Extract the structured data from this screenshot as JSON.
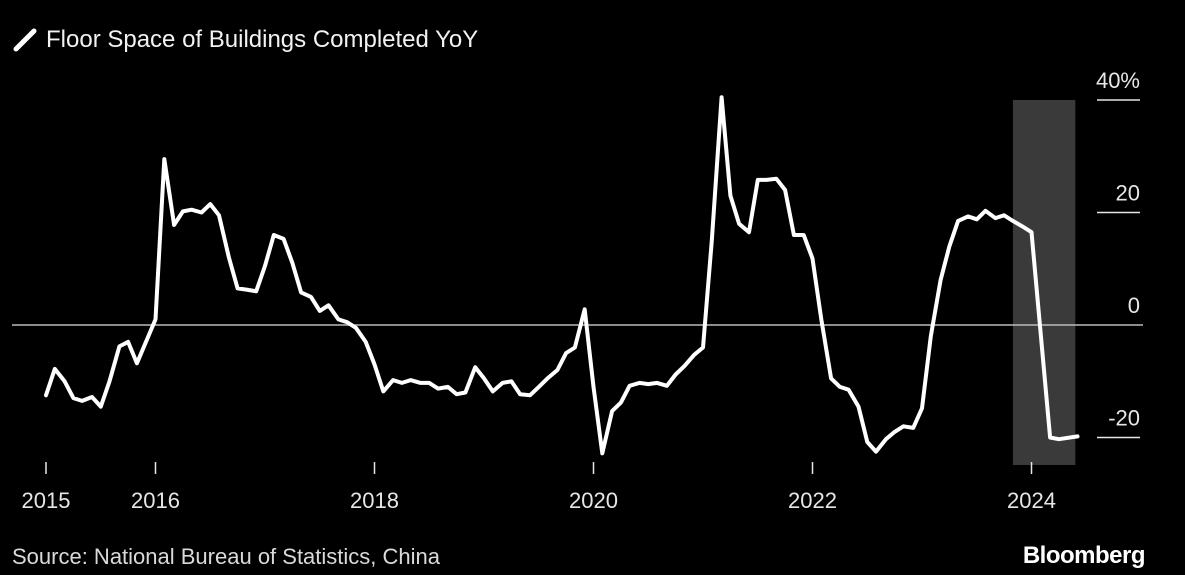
{
  "legend": {
    "series_label": "Floor Space of Buildings Completed YoY",
    "icon": "diagonal-line-icon"
  },
  "source": "Source: National Bureau of Statistics, China",
  "brand": "Bloomberg",
  "colors": {
    "background": "#000000",
    "line": "#ffffff",
    "shade": "#3a3a3a",
    "zero_line": "#bbbbbb"
  },
  "chart_data": {
    "type": "line",
    "title": "",
    "xlabel": "",
    "ylabel": "",
    "ylim": [
      -25,
      40
    ],
    "y_ticks": [
      {
        "value": 40,
        "label": "40%"
      },
      {
        "value": 20,
        "label": "20"
      },
      {
        "value": 0,
        "label": "0"
      },
      {
        "value": -20,
        "label": "-20"
      }
    ],
    "x_ticks": [
      {
        "value": 2015,
        "label": "2015"
      },
      {
        "value": 2016,
        "label": "2016"
      },
      {
        "value": 2018,
        "label": "2018"
      },
      {
        "value": 2020,
        "label": "2020"
      },
      {
        "value": 2022,
        "label": "2022"
      },
      {
        "value": 2024,
        "label": "2024"
      }
    ],
    "xlim": [
      2014.65,
      2025.3
    ],
    "shaded_region": {
      "x_start": 2023.83,
      "x_end": 2024.4
    },
    "grid": false,
    "legend_position": "top-left",
    "series": [
      {
        "name": "Floor Space of Buildings Completed YoY",
        "points": [
          [
            2015.0,
            -12.5
          ],
          [
            2015.08,
            -7.8
          ],
          [
            2015.17,
            -10.0
          ],
          [
            2015.25,
            -13.0
          ],
          [
            2015.33,
            -13.5
          ],
          [
            2015.42,
            -12.8
          ],
          [
            2015.5,
            -14.5
          ],
          [
            2015.58,
            -10.0
          ],
          [
            2015.67,
            -3.8
          ],
          [
            2015.75,
            -3.0
          ],
          [
            2015.83,
            -6.8
          ],
          [
            2016.0,
            1.0
          ],
          [
            2016.08,
            29.5
          ],
          [
            2016.17,
            17.8
          ],
          [
            2016.25,
            20.2
          ],
          [
            2016.33,
            20.5
          ],
          [
            2016.42,
            20.0
          ],
          [
            2016.5,
            21.5
          ],
          [
            2016.58,
            19.5
          ],
          [
            2016.67,
            12.0
          ],
          [
            2016.75,
            6.5
          ],
          [
            2016.83,
            6.3
          ],
          [
            2016.92,
            6.0
          ],
          [
            2017.0,
            10.5
          ],
          [
            2017.08,
            16.0
          ],
          [
            2017.17,
            15.3
          ],
          [
            2017.25,
            11.0
          ],
          [
            2017.33,
            5.8
          ],
          [
            2017.42,
            5.0
          ],
          [
            2017.5,
            2.5
          ],
          [
            2017.58,
            3.5
          ],
          [
            2017.67,
            1.0
          ],
          [
            2017.75,
            0.5
          ],
          [
            2017.83,
            -0.5
          ],
          [
            2017.92,
            -3.0
          ],
          [
            2018.0,
            -7.0
          ],
          [
            2018.08,
            -11.8
          ],
          [
            2018.17,
            -9.8
          ],
          [
            2018.25,
            -10.3
          ],
          [
            2018.33,
            -9.8
          ],
          [
            2018.42,
            -10.3
          ],
          [
            2018.5,
            -10.3
          ],
          [
            2018.58,
            -11.3
          ],
          [
            2018.67,
            -11.0
          ],
          [
            2018.75,
            -12.3
          ],
          [
            2018.83,
            -12.0
          ],
          [
            2018.92,
            -7.5
          ],
          [
            2019.0,
            -9.5
          ],
          [
            2019.08,
            -11.8
          ],
          [
            2019.17,
            -10.3
          ],
          [
            2019.25,
            -10.0
          ],
          [
            2019.33,
            -12.3
          ],
          [
            2019.42,
            -12.5
          ],
          [
            2019.5,
            -11.0
          ],
          [
            2019.58,
            -9.5
          ],
          [
            2019.67,
            -8.0
          ],
          [
            2019.75,
            -5.0
          ],
          [
            2019.83,
            -4.0
          ],
          [
            2019.92,
            2.8
          ],
          [
            2020.0,
            -11.0
          ],
          [
            2020.08,
            -22.8
          ],
          [
            2020.17,
            -15.3
          ],
          [
            2020.25,
            -13.8
          ],
          [
            2020.33,
            -10.8
          ],
          [
            2020.42,
            -10.3
          ],
          [
            2020.5,
            -10.5
          ],
          [
            2020.58,
            -10.3
          ],
          [
            2020.67,
            -10.8
          ],
          [
            2020.75,
            -8.8
          ],
          [
            2020.83,
            -7.3
          ],
          [
            2020.92,
            -5.3
          ],
          [
            2021.0,
            -4.0
          ],
          [
            2021.08,
            15.0
          ],
          [
            2021.17,
            40.5
          ],
          [
            2021.25,
            23.0
          ],
          [
            2021.33,
            18.0
          ],
          [
            2021.42,
            16.5
          ],
          [
            2021.5,
            25.8
          ],
          [
            2021.58,
            25.8
          ],
          [
            2021.67,
            26.0
          ],
          [
            2021.75,
            24.0
          ],
          [
            2021.83,
            16.0
          ],
          [
            2021.92,
            16.0
          ],
          [
            2022.0,
            11.8
          ],
          [
            2022.08,
            1.0
          ],
          [
            2022.17,
            -9.5
          ],
          [
            2022.25,
            -11.0
          ],
          [
            2022.33,
            -11.5
          ],
          [
            2022.42,
            -14.5
          ],
          [
            2022.5,
            -20.8
          ],
          [
            2022.58,
            -22.5
          ],
          [
            2022.67,
            -20.3
          ],
          [
            2022.75,
            -19.0
          ],
          [
            2022.83,
            -18.0
          ],
          [
            2022.92,
            -18.3
          ],
          [
            2023.0,
            -14.8
          ],
          [
            2023.08,
            -2.0
          ],
          [
            2023.17,
            8.0
          ],
          [
            2023.25,
            14.0
          ],
          [
            2023.33,
            18.5
          ],
          [
            2023.42,
            19.3
          ],
          [
            2023.5,
            18.8
          ],
          [
            2023.58,
            20.3
          ],
          [
            2023.67,
            19.0
          ],
          [
            2023.75,
            19.5
          ],
          [
            2023.83,
            18.5
          ],
          [
            2023.92,
            17.5
          ],
          [
            2024.0,
            16.5
          ],
          [
            2024.17,
            -20.0
          ],
          [
            2024.25,
            -20.3
          ],
          [
            2024.42,
            -19.8
          ]
        ]
      }
    ]
  }
}
